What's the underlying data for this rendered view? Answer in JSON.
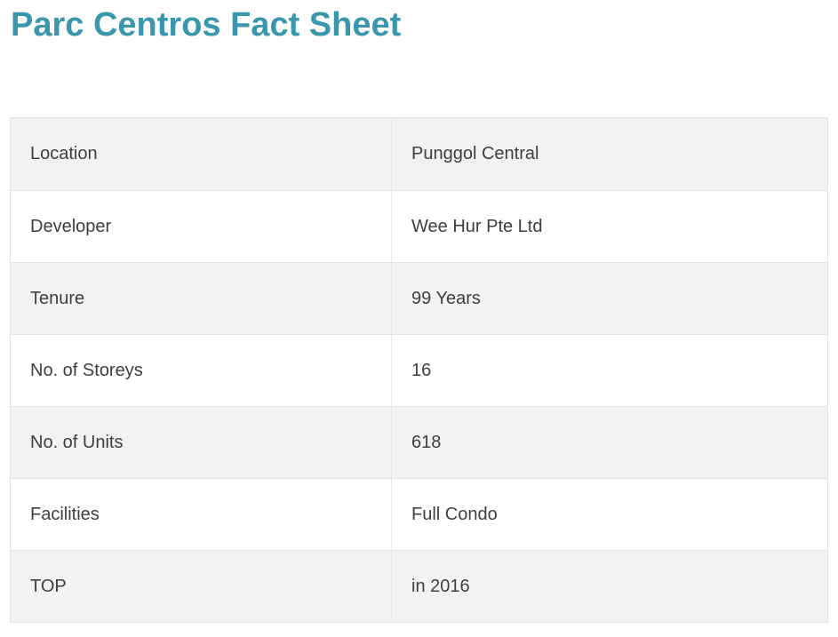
{
  "page": {
    "title": "Parc Centros Fact Sheet"
  },
  "colors": {
    "accent": "#3a96ad",
    "row_alt_background": "#f2f2f2",
    "row_background": "#ffffff",
    "border": "#e3e3e3",
    "text": "#3e3e3e"
  },
  "fact_sheet": {
    "rows": [
      {
        "label": "Location",
        "value": "Punggol Central"
      },
      {
        "label": "Developer",
        "value": "Wee Hur Pte Ltd"
      },
      {
        "label": "Tenure",
        "value": "99 Years"
      },
      {
        "label": "No. of Storeys",
        "value": "16"
      },
      {
        "label": "No. of Units",
        "value": "618"
      },
      {
        "label": "Facilities",
        "value": "Full Condo"
      },
      {
        "label": "TOP",
        "value": "in 2016"
      }
    ]
  }
}
